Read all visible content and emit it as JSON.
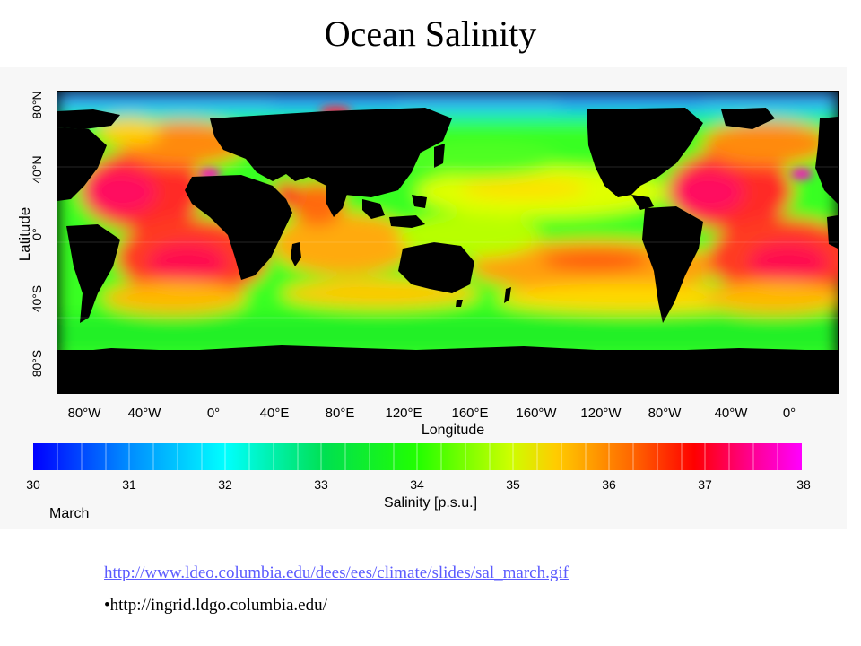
{
  "slide": {
    "title": "Ocean Salinity"
  },
  "map": {
    "ylabel": "Latitude",
    "xlabel": "Longitude",
    "lat_ticks": [
      "80°N",
      "40°N",
      "0°",
      "40°S",
      "80°S"
    ],
    "lon_ticks": [
      "80°W",
      "40°W",
      "0°",
      "40°E",
      "80°E",
      "120°E",
      "160°E",
      "160°W",
      "120°W",
      "80°W",
      "40°W",
      "0°"
    ],
    "land_color": "#000000"
  },
  "colorbar": {
    "ticks": [
      "30",
      "31",
      "32",
      "33",
      "34",
      "35",
      "36",
      "37",
      "38"
    ],
    "label": "Salinity [p.s.u.]",
    "month": "March",
    "range": [
      30,
      38
    ],
    "colors": [
      "#0000ff",
      "#0088ff",
      "#00ffff",
      "#00e050",
      "#22ff00",
      "#ccff00",
      "#ffcc00",
      "#ff6600",
      "#ff0000",
      "#ff0088",
      "#ff00ff"
    ]
  },
  "references": {
    "link": "http://www.ldeo.columbia.edu/dees/ees/climate/slides/sal_march.gif",
    "line2": "•http://ingrid.ldgo.columbia.edu/"
  }
}
